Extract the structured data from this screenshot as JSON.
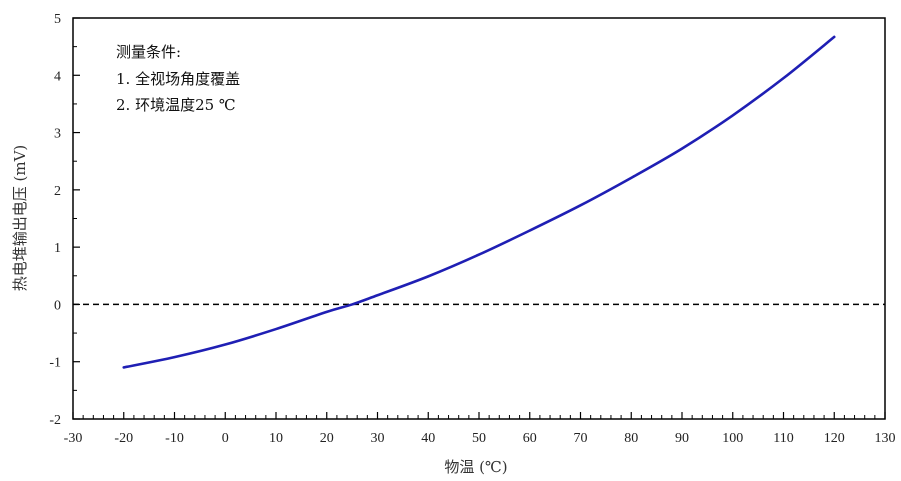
{
  "chart_data": {
    "type": "line",
    "title": "",
    "xlabel": "物温 (℃)",
    "ylabel": "热电堆输出电压 (mV)",
    "xlim": [
      -30,
      130
    ],
    "ylim": [
      -2,
      5
    ],
    "x_ticks": [
      -30,
      -20,
      -10,
      0,
      10,
      20,
      30,
      40,
      50,
      60,
      70,
      80,
      90,
      100,
      110,
      120,
      130
    ],
    "y_ticks": [
      -2,
      -1,
      0,
      1,
      2,
      3,
      4,
      5
    ],
    "x_tick_labels": [
      "-30",
      "-20",
      "-10",
      "0",
      "10",
      "20",
      "30",
      "40",
      "50",
      "60",
      "70",
      "80",
      "90",
      "100",
      "110",
      "120",
      "130"
    ],
    "y_tick_labels": [
      "-2",
      "-1",
      "0",
      "1",
      "2",
      "3",
      "4",
      "5"
    ],
    "grid": false,
    "legend": "none",
    "series": [
      {
        "color": "#1f1fb4",
        "x": [
          -20,
          -10,
          0,
          10,
          20,
          25,
          30,
          40,
          50,
          60,
          70,
          80,
          90,
          100,
          110,
          120
        ],
        "y": [
          -1.1,
          -0.92,
          -0.7,
          -0.43,
          -0.13,
          0.0,
          0.16,
          0.49,
          0.87,
          1.29,
          1.73,
          2.21,
          2.72,
          3.3,
          3.95,
          4.67
        ]
      }
    ],
    "reference_line": {
      "y": 0,
      "style": "dashed",
      "color": "#000000"
    },
    "annotations": [
      "测量条件:",
      "1. 全视场角度覆盖",
      "2. 环境温度25 ℃"
    ]
  }
}
